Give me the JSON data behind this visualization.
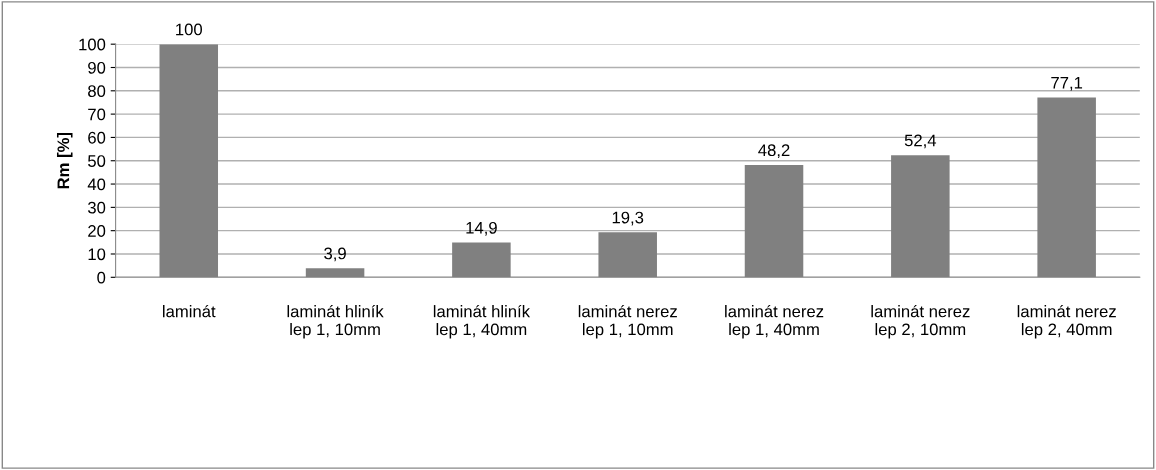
{
  "chart_data": {
    "type": "bar",
    "ylabel": "Rm [%]",
    "categories": [
      "laminát",
      "laminát hliník\nlep 1, 10mm",
      "laminát hliník\nlep 1, 40mm",
      "laminát nerez\nlep 1, 10mm",
      "laminát nerez\nlep 1, 40mm",
      "laminát nerez\nlep 2, 10mm",
      "laminát nerez\nlep 2, 40mm"
    ],
    "values": [
      100,
      3.9,
      14.9,
      19.3,
      48.2,
      52.4,
      77.1
    ],
    "value_labels": [
      "100",
      "3,9",
      "14,9",
      "19,3",
      "48,2",
      "52,4",
      "77,1"
    ],
    "color": "#808080",
    "ylim": [
      0,
      100
    ],
    "yticks": [
      0,
      10,
      20,
      30,
      40,
      50,
      60,
      70,
      80,
      90,
      100
    ],
    "grid": "y",
    "legend": false
  }
}
